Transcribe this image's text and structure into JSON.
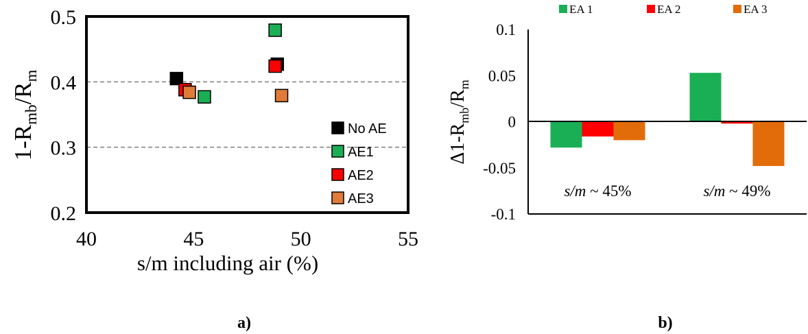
{
  "chart_data": [
    {
      "type": "scatter",
      "panel_label": "a)",
      "xlabel": "s/m including air (%)",
      "ylabel": {
        "base": "1-R",
        "sub1": "mb",
        "mid": "/R",
        "sub2": "m"
      },
      "xlim": [
        40,
        55
      ],
      "ylim": [
        0.2,
        0.5
      ],
      "xticks": [
        "40",
        "45",
        "50",
        "55"
      ],
      "yticks": [
        "0.2",
        "0.3",
        "0.4",
        "0.5"
      ],
      "dashed_gridlines_y": [
        0.3,
        0.4
      ],
      "legend_position": "bottom-right",
      "series": [
        {
          "name": "No AE",
          "color": "#000000",
          "points": [
            [
              44.2,
              0.405
            ],
            [
              48.9,
              0.427
            ]
          ]
        },
        {
          "name": "AE1",
          "color": "#1aaf54",
          "points": [
            [
              45.5,
              0.377
            ],
            [
              48.8,
              0.479
            ]
          ]
        },
        {
          "name": "AE2",
          "color": "#ff0000",
          "points": [
            [
              44.6,
              0.388
            ],
            [
              48.8,
              0.424
            ]
          ]
        },
        {
          "name": "AE3",
          "color": "#e07b39",
          "points": [
            [
              44.8,
              0.384
            ],
            [
              49.1,
              0.379
            ]
          ]
        }
      ]
    },
    {
      "type": "bar",
      "panel_label": "b)",
      "ylabel": {
        "base": "Δ1-R",
        "sub1": "mb",
        "mid": "/R",
        "sub2": "m"
      },
      "ylim": [
        -0.1,
        0.1
      ],
      "yticks": [
        "0.1",
        "0.05",
        "0",
        "-0.05",
        "-0.1"
      ],
      "legend_position": "top",
      "categories": [
        {
          "italic": "s/m",
          "rest": " ~ 45%"
        },
        {
          "italic": "s/m",
          "rest": " ~ 49%"
        }
      ],
      "series": [
        {
          "name": "EA 1",
          "color": "#1aaf54",
          "values": [
            -0.028,
            0.053
          ]
        },
        {
          "name": "EA 2",
          "color": "#ff0000",
          "values": [
            -0.016,
            -0.002
          ]
        },
        {
          "name": "EA 3",
          "color": "#e36c0a",
          "values": [
            -0.02,
            -0.048
          ]
        }
      ]
    }
  ]
}
